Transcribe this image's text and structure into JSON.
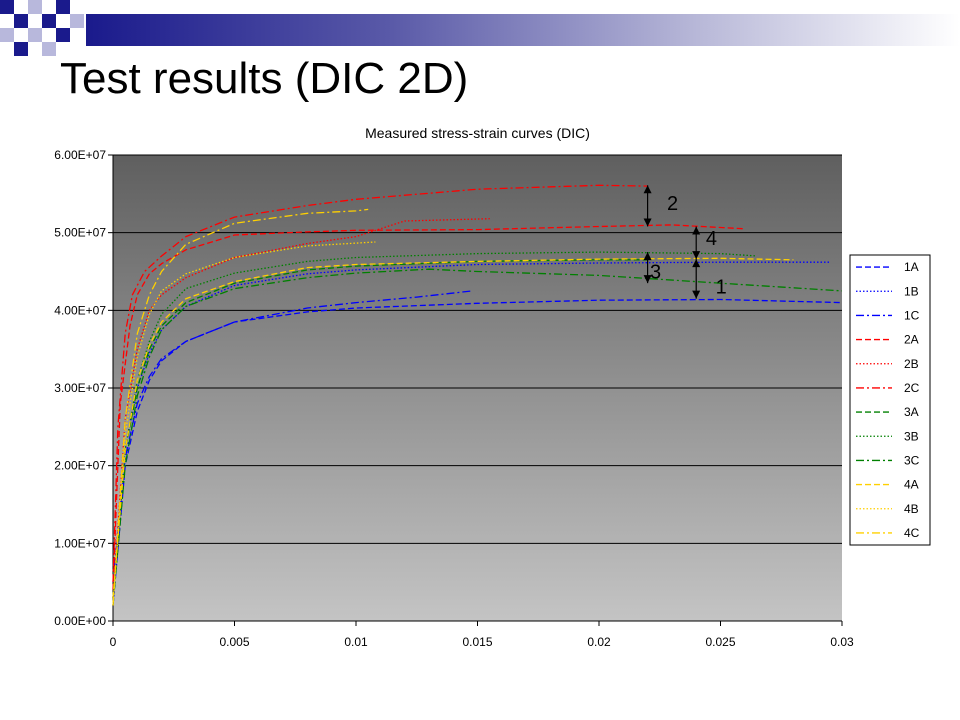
{
  "slide": {
    "title": "Test results (DIC 2D)"
  },
  "chart_data": {
    "type": "line",
    "title": "Measured stress-strain curves (DIC)",
    "xlabel": "",
    "ylabel": "",
    "xlim": [
      0,
      0.03
    ],
    "ylim": [
      0,
      60000000
    ],
    "x_ticks": [
      0,
      0.005,
      0.01,
      0.015,
      0.02,
      0.025,
      0.03
    ],
    "x_tick_labels": [
      "0",
      "0.005",
      "0.01",
      "0.015",
      "0.02",
      "0.025",
      "0.03"
    ],
    "y_ticks": [
      0,
      10000000,
      20000000,
      30000000,
      40000000,
      50000000,
      60000000
    ],
    "y_tick_labels": [
      "0.00E+00",
      "1.00E+07",
      "2.00E+07",
      "3.00E+07",
      "4.00E+07",
      "5.00E+07",
      "6.00E+07"
    ],
    "grid": "horizontal",
    "legend_position": "right",
    "series": [
      {
        "name": "1A",
        "color": "#0000ff",
        "dash": "6,3",
        "points": [
          [
            0,
            2000000
          ],
          [
            0.0005,
            20000000
          ],
          [
            0.001,
            27000000
          ],
          [
            0.0015,
            31000000
          ],
          [
            0.002,
            33500000
          ],
          [
            0.003,
            36000000
          ],
          [
            0.005,
            38500000
          ],
          [
            0.008,
            39800000
          ],
          [
            0.01,
            40300000
          ],
          [
            0.015,
            40900000
          ],
          [
            0.02,
            41300000
          ],
          [
            0.025,
            41400000
          ],
          [
            0.03,
            41000000
          ]
        ]
      },
      {
        "name": "1B",
        "color": "#0000ff",
        "dash": "1.5,2",
        "points": [
          [
            0,
            3000000
          ],
          [
            0.0005,
            22000000
          ],
          [
            0.001,
            30000000
          ],
          [
            0.0015,
            34500000
          ],
          [
            0.002,
            37500000
          ],
          [
            0.003,
            40500000
          ],
          [
            0.005,
            43200000
          ],
          [
            0.008,
            44700000
          ],
          [
            0.01,
            45200000
          ],
          [
            0.015,
            45900000
          ],
          [
            0.02,
            46100000
          ],
          [
            0.025,
            46200000
          ],
          [
            0.0295,
            46200000
          ]
        ]
      },
      {
        "name": "1C",
        "color": "#0000ff",
        "dash": "8,3,2,3",
        "points": [
          [
            0,
            5000000
          ],
          [
            0.0005,
            21000000
          ],
          [
            0.001,
            28000000
          ],
          [
            0.0015,
            31500000
          ],
          [
            0.002,
            33800000
          ],
          [
            0.003,
            36000000
          ],
          [
            0.005,
            38500000
          ],
          [
            0.008,
            40300000
          ],
          [
            0.01,
            41000000
          ],
          [
            0.0125,
            41700000
          ],
          [
            0.0148,
            42500000
          ]
        ]
      },
      {
        "name": "2A",
        "color": "#ff0000",
        "dash": "6,3",
        "points": [
          [
            0,
            4000000
          ],
          [
            0.0003,
            28000000
          ],
          [
            0.0007,
            38000000
          ],
          [
            0.001,
            42000000
          ],
          [
            0.0015,
            44700000
          ],
          [
            0.002,
            46000000
          ],
          [
            0.003,
            47800000
          ],
          [
            0.005,
            49700000
          ],
          [
            0.008,
            50100000
          ],
          [
            0.01,
            50300000
          ],
          [
            0.015,
            50400000
          ],
          [
            0.02,
            50800000
          ],
          [
            0.023,
            51000000
          ],
          [
            0.026,
            50500000
          ]
        ]
      },
      {
        "name": "2B",
        "color": "#ff0000",
        "dash": "1.5,2",
        "points": [
          [
            0,
            3000000
          ],
          [
            0.0005,
            26000000
          ],
          [
            0.001,
            35000000
          ],
          [
            0.0015,
            40000000
          ],
          [
            0.002,
            42000000
          ],
          [
            0.003,
            44200000
          ],
          [
            0.005,
            46800000
          ],
          [
            0.008,
            48600000
          ],
          [
            0.01,
            49500000
          ],
          [
            0.012,
            51500000
          ],
          [
            0.0155,
            51800000
          ]
        ]
      },
      {
        "name": "2C",
        "color": "#ff0000",
        "dash": "8,3,2,3",
        "points": [
          [
            0,
            5000000
          ],
          [
            0.0002,
            25000000
          ],
          [
            0.0005,
            37000000
          ],
          [
            0.0008,
            42000000
          ],
          [
            0.0013,
            45000000
          ],
          [
            0.002,
            47000000
          ],
          [
            0.003,
            49500000
          ],
          [
            0.005,
            52000000
          ],
          [
            0.008,
            53500000
          ],
          [
            0.01,
            54300000
          ],
          [
            0.015,
            55600000
          ],
          [
            0.02,
            56100000
          ],
          [
            0.022,
            56000000
          ]
        ]
      },
      {
        "name": "3A",
        "color": "#008000",
        "dash": "6,3",
        "points": [
          [
            0,
            3000000
          ],
          [
            0.0005,
            22000000
          ],
          [
            0.001,
            30000000
          ],
          [
            0.0015,
            35000000
          ],
          [
            0.002,
            38000000
          ],
          [
            0.003,
            41000000
          ],
          [
            0.005,
            43500000
          ],
          [
            0.008,
            45200000
          ],
          [
            0.01,
            45700000
          ],
          [
            0.015,
            46300000
          ],
          [
            0.02,
            46500000
          ],
          [
            0.022,
            46500000
          ]
        ]
      },
      {
        "name": "3B",
        "color": "#008000",
        "dash": "1.5,2",
        "points": [
          [
            0,
            3000000
          ],
          [
            0.0005,
            22000000
          ],
          [
            0.001,
            31000000
          ],
          [
            0.0015,
            36000000
          ],
          [
            0.002,
            39500000
          ],
          [
            0.003,
            42800000
          ],
          [
            0.005,
            44800000
          ],
          [
            0.008,
            46300000
          ],
          [
            0.01,
            46800000
          ],
          [
            0.015,
            47300000
          ],
          [
            0.02,
            47500000
          ],
          [
            0.025,
            47300000
          ],
          [
            0.0265,
            47000000
          ]
        ]
      },
      {
        "name": "3C",
        "color": "#008000",
        "dash": "8,3,2,3",
        "points": [
          [
            0,
            2000000
          ],
          [
            0.0005,
            20000000
          ],
          [
            0.001,
            29000000
          ],
          [
            0.0015,
            34000000
          ],
          [
            0.002,
            37500000
          ],
          [
            0.003,
            40500000
          ],
          [
            0.005,
            42800000
          ],
          [
            0.008,
            44200000
          ],
          [
            0.01,
            44800000
          ],
          [
            0.013,
            45300000
          ],
          [
            0.015,
            45000000
          ],
          [
            0.02,
            44500000
          ],
          [
            0.025,
            43500000
          ],
          [
            0.03,
            42500000
          ]
        ]
      },
      {
        "name": "4A",
        "color": "#ffd000",
        "dash": "6,3",
        "points": [
          [
            0,
            3000000
          ],
          [
            0.0005,
            22000000
          ],
          [
            0.001,
            31000000
          ],
          [
            0.0015,
            35500000
          ],
          [
            0.002,
            38500000
          ],
          [
            0.003,
            41500000
          ],
          [
            0.005,
            43700000
          ],
          [
            0.008,
            45500000
          ],
          [
            0.01,
            45900000
          ],
          [
            0.015,
            46300000
          ],
          [
            0.02,
            46600000
          ],
          [
            0.025,
            46700000
          ],
          [
            0.028,
            46500000
          ]
        ]
      },
      {
        "name": "4B",
        "color": "#ffd000",
        "dash": "1.5,2",
        "points": [
          [
            0,
            2000000
          ],
          [
            0.0005,
            24000000
          ],
          [
            0.001,
            34000000
          ],
          [
            0.0015,
            39500000
          ],
          [
            0.002,
            42500000
          ],
          [
            0.003,
            44700000
          ],
          [
            0.005,
            46800000
          ],
          [
            0.008,
            48300000
          ],
          [
            0.0108,
            48800000
          ]
        ]
      },
      {
        "name": "4C",
        "color": "#ffd000",
        "dash": "8,3,2,3",
        "points": [
          [
            0,
            2000000
          ],
          [
            0.0005,
            26000000
          ],
          [
            0.001,
            37000000
          ],
          [
            0.0015,
            42000000
          ],
          [
            0.002,
            45000000
          ],
          [
            0.003,
            48500000
          ],
          [
            0.005,
            51200000
          ],
          [
            0.008,
            52500000
          ],
          [
            0.01,
            52800000
          ],
          [
            0.0105,
            53000000
          ]
        ]
      }
    ],
    "annotations": [
      {
        "label": "2",
        "x_from": 0.022,
        "y_from": 56100000,
        "y_to": 50800000,
        "label_x": 0.0228,
        "label_y": 53800000
      },
      {
        "label": "4",
        "x_from": 0.024,
        "y_from": 50800000,
        "y_to": 46600000,
        "label_x": 0.0244,
        "label_y": 49300000
      },
      {
        "label": "3",
        "x_from": 0.022,
        "y_from": 47500000,
        "y_to": 43500000,
        "label_x": 0.0221,
        "label_y": 45000000
      },
      {
        "label": "1",
        "x_from": 0.024,
        "y_from": 46600000,
        "y_to": 41500000,
        "label_x": 0.0248,
        "label_y": 43100000
      }
    ]
  }
}
